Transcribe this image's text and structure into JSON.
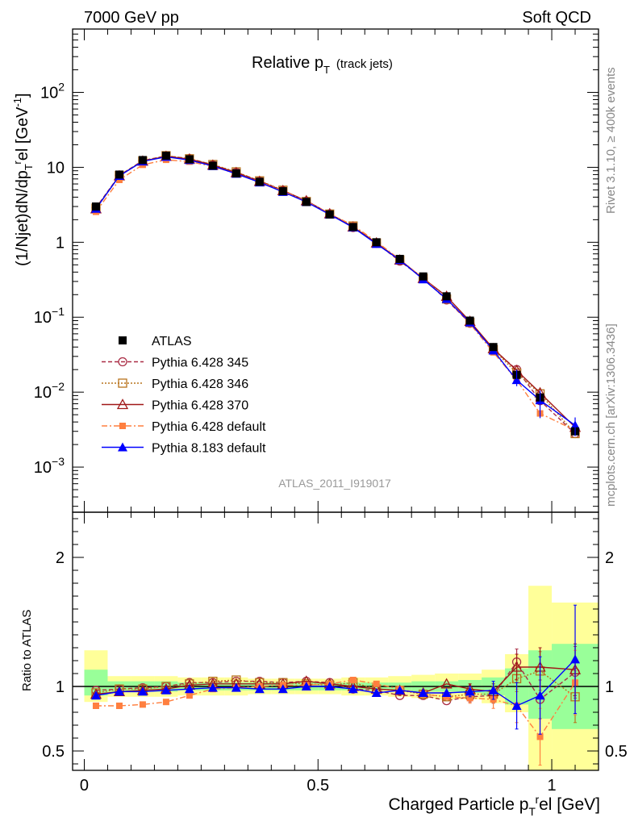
{
  "header": {
    "energy": "7000 GeV pp",
    "process": "Soft QCD"
  },
  "side": {
    "rivet": "Rivet 3.1.10, ≥ 400k events",
    "mcplots": "mcplots.cern.ch [arXiv:1306.3436]"
  },
  "analysis_id": "ATLAS_2011_I919017",
  "chart_data": [
    {
      "type": "line",
      "panel": "main",
      "title": "Relative pT (track jets)",
      "title_main": "Relative p",
      "title_sub": "T",
      "title_extra": "(track jets)",
      "ylabel": "(1/Njet)dN/dp_T^rel [GeV^-1]",
      "xlabel": "Charged Particle p_T^rel [GeV]",
      "yscale": "log",
      "xlim": [
        -0.025,
        1.1
      ],
      "ylim": [
        0.00025,
        700
      ],
      "y_ticks": [
        {
          "value": 0.001,
          "label": "10",
          "exp": "−3"
        },
        {
          "value": 0.01,
          "label": "10",
          "exp": "−2"
        },
        {
          "value": 0.1,
          "label": "10",
          "exp": "−1"
        },
        {
          "value": 1,
          "label": "1",
          "exp": ""
        },
        {
          "value": 10,
          "label": "10",
          "exp": ""
        },
        {
          "value": 100,
          "label": "10",
          "exp": "2"
        }
      ],
      "x": [
        0.025,
        0.075,
        0.125,
        0.175,
        0.225,
        0.275,
        0.325,
        0.375,
        0.425,
        0.475,
        0.525,
        0.575,
        0.625,
        0.675,
        0.725,
        0.775,
        0.825,
        0.875,
        0.925,
        0.975,
        1.05
      ],
      "series": [
        {
          "name": "ATLAS",
          "values": [
            3.0,
            8.0,
            12.5,
            14.3,
            12.8,
            10.5,
            8.3,
            6.4,
            4.8,
            3.45,
            2.35,
            1.6,
            1.0,
            0.6,
            0.35,
            0.19,
            0.09,
            0.04,
            0.017,
            0.0085,
            0.003
          ]
        },
        {
          "name": "Pythia 6.428 345",
          "values": [
            2.9,
            7.8,
            12.3,
            14.2,
            13.1,
            10.8,
            8.6,
            6.6,
            4.9,
            3.55,
            2.4,
            1.57,
            0.97,
            0.56,
            0.33,
            0.17,
            0.083,
            0.037,
            0.02,
            0.0077,
            0.0028
          ]
        },
        {
          "name": "Pythia 6.428 346",
          "values": [
            2.85,
            7.8,
            12.2,
            14.3,
            13.0,
            10.9,
            8.7,
            6.6,
            4.95,
            3.5,
            2.38,
            1.65,
            0.98,
            0.58,
            0.33,
            0.175,
            0.085,
            0.037,
            0.018,
            0.0095,
            0.0028
          ]
        },
        {
          "name": "Pythia 6.428 370",
          "values": [
            2.8,
            7.7,
            12.1,
            14.0,
            12.9,
            10.7,
            8.5,
            6.5,
            4.9,
            3.58,
            2.4,
            1.6,
            0.98,
            0.58,
            0.33,
            0.19,
            0.088,
            0.038,
            0.0195,
            0.0098,
            0.0034
          ]
        },
        {
          "name": "Pythia 6.428 default",
          "values": [
            2.55,
            6.8,
            10.8,
            12.6,
            11.9,
            10.3,
            8.2,
            6.4,
            4.85,
            3.5,
            2.4,
            1.68,
            1.02,
            0.59,
            0.33,
            0.175,
            0.082,
            0.034,
            0.0145,
            0.0052,
            0.0031
          ]
        },
        {
          "name": "Pythia 8.183 default",
          "values": [
            2.8,
            7.7,
            12.0,
            13.8,
            12.5,
            10.4,
            8.2,
            6.3,
            4.7,
            3.45,
            2.35,
            1.58,
            0.95,
            0.58,
            0.32,
            0.175,
            0.085,
            0.036,
            0.0145,
            0.0078,
            0.0036
          ]
        }
      ]
    },
    {
      "type": "line",
      "panel": "ratio",
      "ylabel": "Ratio to ATLAS",
      "xlim": [
        -0.025,
        1.1
      ],
      "ylim": [
        0.35,
        2.35
      ],
      "y_ticks": [
        0.5,
        1,
        2
      ],
      "x_ticks": [
        0,
        0.5,
        1
      ],
      "x_tick_labels": [
        "0",
        "0.5",
        "1"
      ],
      "bins": [
        [
          0.0,
          0.05
        ],
        [
          0.05,
          0.1
        ],
        [
          0.1,
          0.15
        ],
        [
          0.15,
          0.2
        ],
        [
          0.2,
          0.25
        ],
        [
          0.25,
          0.3
        ],
        [
          0.3,
          0.35
        ],
        [
          0.35,
          0.4
        ],
        [
          0.4,
          0.45
        ],
        [
          0.45,
          0.5
        ],
        [
          0.5,
          0.55
        ],
        [
          0.55,
          0.6
        ],
        [
          0.6,
          0.65
        ],
        [
          0.65,
          0.7
        ],
        [
          0.7,
          0.75
        ],
        [
          0.75,
          0.8
        ],
        [
          0.8,
          0.85
        ],
        [
          0.85,
          0.9
        ],
        [
          0.9,
          0.95
        ],
        [
          0.95,
          1.0
        ],
        [
          1.0,
          1.1
        ]
      ],
      "band_inner": [
        [
          0.93,
          1.13
        ],
        [
          0.96,
          1.04
        ],
        [
          0.96,
          1.04
        ],
        [
          0.96,
          1.04
        ],
        [
          0.97,
          1.03
        ],
        [
          0.97,
          1.03
        ],
        [
          0.97,
          1.03
        ],
        [
          0.97,
          1.03
        ],
        [
          0.97,
          1.03
        ],
        [
          0.97,
          1.03
        ],
        [
          0.97,
          1.03
        ],
        [
          0.97,
          1.03
        ],
        [
          0.97,
          1.03
        ],
        [
          0.97,
          1.03
        ],
        [
          0.96,
          1.04
        ],
        [
          0.96,
          1.04
        ],
        [
          0.95,
          1.05
        ],
        [
          0.93,
          1.07
        ],
        [
          0.86,
          1.14
        ],
        [
          0.75,
          1.28
        ],
        [
          0.67,
          1.33
        ]
      ],
      "band_outer": [
        [
          0.88,
          1.28
        ],
        [
          0.92,
          1.08
        ],
        [
          0.92,
          1.08
        ],
        [
          0.92,
          1.08
        ],
        [
          0.93,
          1.07
        ],
        [
          0.93,
          1.07
        ],
        [
          0.93,
          1.07
        ],
        [
          0.94,
          1.06
        ],
        [
          0.94,
          1.06
        ],
        [
          0.94,
          1.06
        ],
        [
          0.94,
          1.06
        ],
        [
          0.93,
          1.07
        ],
        [
          0.93,
          1.07
        ],
        [
          0.92,
          1.08
        ],
        [
          0.91,
          1.09
        ],
        [
          0.9,
          1.1
        ],
        [
          0.9,
          1.1
        ],
        [
          0.87,
          1.13
        ],
        [
          0.8,
          1.25
        ],
        [
          0.35,
          1.78
        ],
        [
          0.35,
          1.65
        ]
      ],
      "series": [
        {
          "name": "Pythia 6.428 345",
          "values": [
            0.97,
            0.98,
            0.99,
            1.0,
            1.03,
            1.03,
            1.04,
            1.04,
            1.03,
            1.04,
            1.03,
            0.98,
            0.97,
            0.93,
            0.93,
            0.89,
            0.92,
            0.93,
            1.19,
            0.9,
            1.11
          ],
          "err": [
            0.02,
            0.02,
            0.02,
            0.02,
            0.02,
            0.02,
            0.02,
            0.02,
            0.02,
            0.02,
            0.02,
            0.02,
            0.02,
            0.03,
            0.03,
            0.03,
            0.04,
            0.06,
            0.1,
            0.15,
            0.2
          ]
        },
        {
          "name": "Pythia 6.428 346",
          "values": [
            0.95,
            0.98,
            0.98,
            1.0,
            1.02,
            1.04,
            1.05,
            1.03,
            1.03,
            1.02,
            1.01,
            1.03,
            0.98,
            0.97,
            0.94,
            0.92,
            0.94,
            0.94,
            1.06,
            1.12,
            0.92
          ],
          "err": [
            0.02,
            0.02,
            0.02,
            0.02,
            0.02,
            0.02,
            0.02,
            0.02,
            0.02,
            0.02,
            0.02,
            0.02,
            0.02,
            0.03,
            0.03,
            0.03,
            0.04,
            0.06,
            0.1,
            0.15,
            0.2
          ]
        },
        {
          "name": "Pythia 6.428 370",
          "values": [
            0.94,
            0.96,
            0.97,
            0.98,
            1.01,
            1.02,
            1.02,
            1.02,
            1.02,
            1.04,
            1.02,
            1.0,
            0.98,
            0.97,
            0.95,
            1.02,
            0.98,
            0.96,
            1.15,
            1.15,
            1.13
          ],
          "err": [
            0.02,
            0.02,
            0.02,
            0.02,
            0.02,
            0.02,
            0.02,
            0.02,
            0.02,
            0.02,
            0.02,
            0.02,
            0.02,
            0.03,
            0.03,
            0.03,
            0.04,
            0.06,
            0.1,
            0.15,
            0.2
          ]
        },
        {
          "name": "Pythia 6.428 default",
          "values": [
            0.85,
            0.85,
            0.86,
            0.88,
            0.93,
            0.98,
            0.99,
            1.0,
            1.01,
            1.01,
            1.02,
            1.05,
            1.02,
            0.98,
            0.94,
            0.92,
            0.91,
            0.9,
            0.85,
            0.61,
            1.03
          ],
          "err": [
            0.02,
            0.02,
            0.02,
            0.02,
            0.02,
            0.02,
            0.02,
            0.02,
            0.02,
            0.02,
            0.02,
            0.02,
            0.02,
            0.03,
            0.03,
            0.03,
            0.04,
            0.07,
            0.13,
            0.22,
            0.25
          ]
        },
        {
          "name": "Pythia 8.183 default",
          "values": [
            0.93,
            0.96,
            0.96,
            0.97,
            0.98,
            0.99,
            0.99,
            0.98,
            0.98,
            1.0,
            1.0,
            0.98,
            0.95,
            0.97,
            0.95,
            0.95,
            0.96,
            0.97,
            0.85,
            0.93,
            1.21
          ],
          "err": [
            0.02,
            0.02,
            0.02,
            0.02,
            0.02,
            0.02,
            0.02,
            0.02,
            0.02,
            0.02,
            0.02,
            0.02,
            0.02,
            0.03,
            0.03,
            0.03,
            0.04,
            0.07,
            0.18,
            0.3,
            0.42
          ]
        }
      ]
    }
  ],
  "series_style": [
    {
      "name": "ATLAS",
      "color": "#000000",
      "marker": "square-filled",
      "dash": ""
    },
    {
      "name": "Pythia 6.428 345",
      "color": "#aa2d45",
      "marker": "circle-open",
      "dash": "5,3"
    },
    {
      "name": "Pythia 6.428 346",
      "color": "#b8731d",
      "marker": "square-open",
      "dash": "2,2"
    },
    {
      "name": "Pythia 6.428 370",
      "color": "#a01818",
      "marker": "triangle-open",
      "dash": ""
    },
    {
      "name": "Pythia 6.428 default",
      "color": "#ff7f3f",
      "marker": "square-filled-small",
      "dash": "7,3,2,3"
    },
    {
      "name": "Pythia 8.183 default",
      "color": "#0000ff",
      "marker": "triangle-filled",
      "dash": ""
    }
  ],
  "band_colors": {
    "inner": "#99ff99",
    "outer": "#ffff99"
  }
}
